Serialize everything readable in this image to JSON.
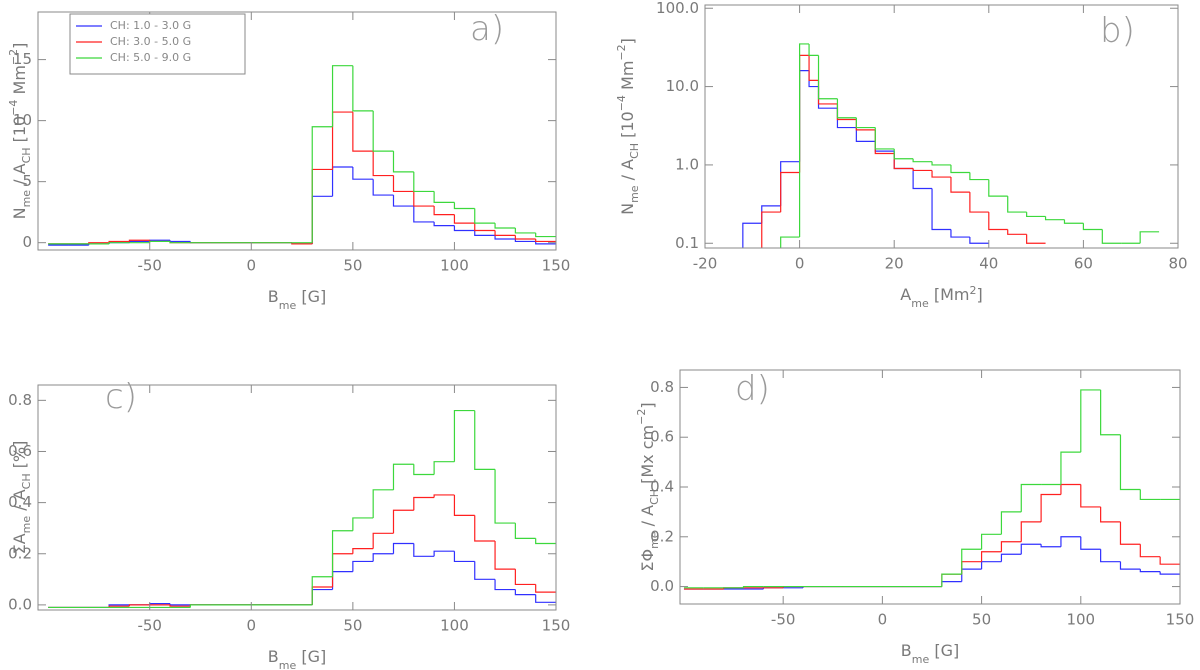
{
  "chart_data": [
    {
      "type": "histogram",
      "label": "a)",
      "xlabel": [
        {
          "text": "B"
        },
        {
          "text": "me",
          "shift": "sub"
        },
        {
          "text": " [G]"
        }
      ],
      "ylabel": [
        {
          "text": "N"
        },
        {
          "text": "me",
          "shift": "sub"
        },
        {
          "text": " / A"
        },
        {
          "text": "CH",
          "shift": "sub"
        },
        {
          "text": " [10"
        },
        {
          "text": "−4",
          "shift": "super"
        },
        {
          "text": " Mm"
        },
        {
          "text": "−2",
          "shift": "super"
        },
        {
          "text": "]"
        }
      ],
      "xlim": [
        -105,
        150
      ],
      "xticks": [
        -50,
        0,
        50,
        100,
        150
      ],
      "ylim": [
        -0.6,
        18.9
      ],
      "yticks": [
        0,
        5,
        10,
        15
      ],
      "legend": "upper left",
      "bins": [
        -100,
        -90,
        -80,
        -70,
        -60,
        -50,
        -40,
        -30,
        -20,
        -10,
        0,
        10,
        20,
        30,
        40,
        50,
        60,
        70,
        80,
        90,
        100,
        110,
        120,
        130,
        140,
        150
      ],
      "series": [
        {
          "name": "CH: 1.0 - 3.0 G",
          "color": "#3030ff",
          "values": [
            -0.2,
            -0.2,
            -0.1,
            0,
            0.1,
            0.2,
            0.1,
            0,
            0,
            0,
            0,
            0,
            -0.1,
            3.8,
            6.2,
            5.2,
            3.9,
            3.0,
            1.7,
            1.4,
            1.0,
            0.6,
            0.3,
            0.1,
            -0.1
          ]
        },
        {
          "name": "CH: 3.0 - 5.0 G",
          "color": "#ff2020",
          "values": [
            -0.1,
            -0.1,
            0,
            0.1,
            0.2,
            0.1,
            0,
            0,
            0,
            0,
            0,
            0,
            -0.1,
            6.0,
            10.7,
            7.5,
            5.5,
            4.2,
            3.0,
            2.3,
            1.6,
            1.0,
            0.6,
            0.3,
            0.1
          ]
        },
        {
          "name": "CH: 5.0 - 9.0 G",
          "color": "#3cd83c",
          "values": [
            -0.1,
            -0.1,
            -0.1,
            0,
            0,
            0.1,
            0,
            0,
            0,
            0,
            0,
            0,
            0,
            9.5,
            14.5,
            10.8,
            7.5,
            5.8,
            4.2,
            3.3,
            2.8,
            1.6,
            1.2,
            0.8,
            0.5
          ]
        }
      ]
    },
    {
      "type": "histogram",
      "label": "b)",
      "xlabel": [
        {
          "text": "A"
        },
        {
          "text": "me",
          "shift": "sub"
        },
        {
          "text": " [Mm"
        },
        {
          "text": "2",
          "shift": "super"
        },
        {
          "text": "]"
        }
      ],
      "ylabel": [
        {
          "text": "N"
        },
        {
          "text": "me",
          "shift": "sub"
        },
        {
          "text": " / A"
        },
        {
          "text": "CH",
          "shift": "sub"
        },
        {
          "text": " [10"
        },
        {
          "text": "−4",
          "shift": "super"
        },
        {
          "text": " Mm"
        },
        {
          "text": "−2",
          "shift": "super"
        },
        {
          "text": "]"
        }
      ],
      "xlim": [
        -20,
        80
      ],
      "xticks": [
        -20,
        0,
        20,
        40,
        60,
        80
      ],
      "ylim": [
        0.087,
        110
      ],
      "ylog": true,
      "yticks": [
        0.1,
        {
          "value": 1,
          "label": "1.0"
        },
        {
          "value": 10,
          "label": "10.0"
        },
        {
          "value": 100,
          "label": "100.0"
        }
      ],
      "bins": [
        -12,
        -8,
        -4,
        0,
        2,
        4,
        8,
        12,
        16,
        20,
        24,
        28,
        32,
        36,
        40,
        44,
        48,
        52,
        56,
        60,
        64,
        68,
        72,
        76
      ],
      "series": [
        {
          "color": "#3030ff",
          "values": [
            0.18,
            0.3,
            1.1,
            16,
            10,
            5.3,
            3.0,
            2.0,
            1.5,
            0.9,
            0.5,
            0.15,
            0.12,
            0.1,
            null,
            null,
            null,
            null,
            null,
            null,
            null,
            null,
            null
          ]
        },
        {
          "color": "#ff2020",
          "values": [
            null,
            0.25,
            0.8,
            25,
            12,
            6,
            3.8,
            2.8,
            1.4,
            0.9,
            0.85,
            0.7,
            0.45,
            0.25,
            0.15,
            0.13,
            0.1,
            null,
            null,
            null,
            null,
            null,
            null
          ]
        },
        {
          "color": "#3cd83c",
          "values": [
            null,
            null,
            0.12,
            35,
            25,
            7,
            4.0,
            3.0,
            1.6,
            1.2,
            1.1,
            1.0,
            0.8,
            0.65,
            0.4,
            0.25,
            0.22,
            0.2,
            0.18,
            0.15,
            0.1,
            0.1,
            0.14
          ]
        }
      ]
    },
    {
      "type": "histogram",
      "label": "c)",
      "xlabel": [
        {
          "text": "B"
        },
        {
          "text": "me",
          "shift": "sub"
        },
        {
          "text": " [G]"
        }
      ],
      "ylabel": [
        {
          "text": "ΣA"
        },
        {
          "text": "me",
          "shift": "sub"
        },
        {
          "text": " / A"
        },
        {
          "text": "CH",
          "shift": "sub"
        },
        {
          "text": " [%]"
        }
      ],
      "xlim": [
        -105,
        150
      ],
      "xticks": [
        -50,
        0,
        50,
        100,
        150
      ],
      "ylim": [
        -0.02,
        0.86
      ],
      "yticks": [
        {
          "value": 0,
          "label": "0.0"
        },
        0.2,
        0.4,
        0.6,
        0.8
      ],
      "bins": [
        -100,
        -90,
        -80,
        -70,
        -60,
        -50,
        -40,
        -30,
        -20,
        -10,
        0,
        10,
        20,
        30,
        40,
        50,
        60,
        70,
        80,
        90,
        100,
        110,
        120,
        130,
        140,
        150
      ],
      "series": [
        {
          "color": "#3030ff",
          "values": [
            -0.01,
            -0.01,
            -0.01,
            0,
            0,
            0.005,
            0,
            0,
            0,
            0,
            0,
            0,
            0,
            0.06,
            0.13,
            0.17,
            0.2,
            0.24,
            0.19,
            0.21,
            0.17,
            0.1,
            0.06,
            0.04,
            0.01
          ]
        },
        {
          "color": "#ff2020",
          "values": [
            -0.01,
            -0.01,
            -0.01,
            -0.005,
            0,
            0,
            -0.005,
            0,
            0,
            0,
            0,
            0,
            0,
            0.07,
            0.2,
            0.22,
            0.28,
            0.37,
            0.42,
            0.43,
            0.35,
            0.25,
            0.14,
            0.08,
            0.05
          ]
        },
        {
          "color": "#3cd83c",
          "values": [
            -0.01,
            -0.01,
            -0.01,
            -0.01,
            -0.01,
            -0.01,
            -0.01,
            0,
            0,
            0,
            0,
            0,
            0,
            0.11,
            0.29,
            0.34,
            0.45,
            0.55,
            0.51,
            0.56,
            0.76,
            0.53,
            0.32,
            0.26,
            0.24
          ]
        }
      ]
    },
    {
      "type": "histogram",
      "label": "d)",
      "xlabel": [
        {
          "text": "B"
        },
        {
          "text": "me",
          "shift": "sub"
        },
        {
          "text": " [G]"
        }
      ],
      "ylabel": [
        {
          "text": "ΣΦ"
        },
        {
          "text": "me",
          "shift": "sub"
        },
        {
          "text": " / A"
        },
        {
          "text": "CH",
          "shift": "sub"
        },
        {
          "text": " [Mx cm"
        },
        {
          "text": "−2",
          "shift": "super"
        },
        {
          "text": "]"
        }
      ],
      "xlim": [
        -102,
        150
      ],
      "xticks": [
        -50,
        0,
        50,
        100,
        150
      ],
      "ylim": [
        -0.07,
        0.87
      ],
      "yticks": [
        {
          "value": 0,
          "label": "0.0"
        },
        0.2,
        0.4,
        0.6,
        0.8
      ],
      "bins": [
        -100,
        -90,
        -80,
        -70,
        -60,
        -50,
        -40,
        -30,
        -20,
        -10,
        0,
        10,
        20,
        30,
        40,
        50,
        60,
        70,
        80,
        90,
        100,
        110,
        120,
        130,
        140,
        150
      ],
      "series": [
        {
          "color": "#3030ff",
          "values": [
            -0.01,
            -0.01,
            -0.01,
            -0.01,
            -0.005,
            -0.005,
            0,
            0,
            0,
            0,
            0,
            0,
            0,
            0.02,
            0.07,
            0.1,
            0.13,
            0.17,
            0.16,
            0.2,
            0.15,
            0.1,
            0.07,
            0.06,
            0.05
          ]
        },
        {
          "color": "#ff2020",
          "values": [
            -0.01,
            -0.01,
            -0.005,
            -0.005,
            -0.005,
            0,
            0,
            0,
            0,
            0,
            0,
            0,
            0,
            0.05,
            0.1,
            0.14,
            0.18,
            0.26,
            0.37,
            0.41,
            0.32,
            0.26,
            0.17,
            0.12,
            0.09
          ]
        },
        {
          "color": "#3cd83c",
          "values": [
            -0.005,
            -0.005,
            -0.005,
            0,
            0,
            0,
            0,
            0,
            0,
            0,
            0,
            0,
            0,
            0.05,
            0.15,
            0.21,
            0.3,
            0.41,
            0.41,
            0.54,
            0.79,
            0.61,
            0.39,
            0.35,
            0.35
          ]
        }
      ]
    }
  ]
}
